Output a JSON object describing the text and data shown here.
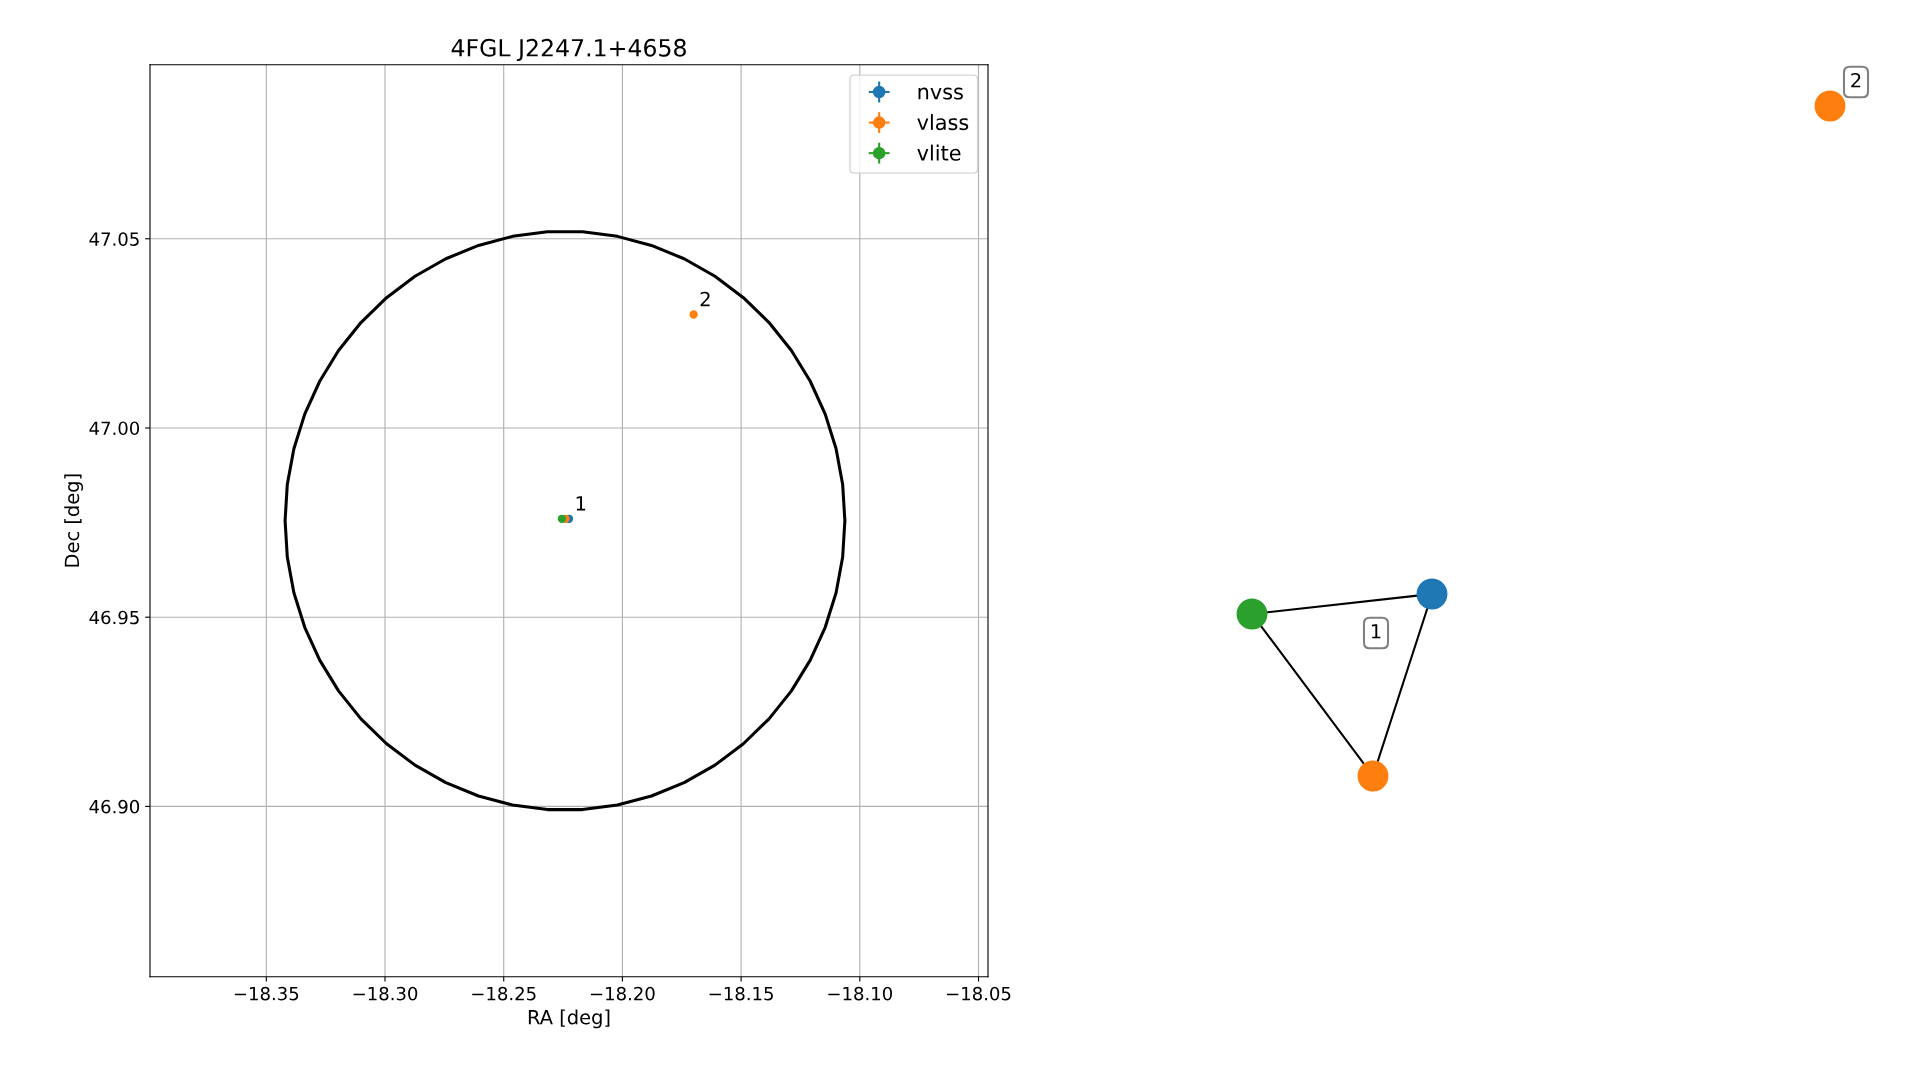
{
  "chart_data": [
    {
      "type": "scatter",
      "title": "4FGL J2247.1+4658",
      "xlabel": "RA [deg]",
      "ylabel": "Dec [deg]",
      "xlim": [
        -18.399,
        -18.046
      ],
      "ylim": [
        46.855,
        47.096
      ],
      "xticks": [
        {
          "value": -18.35,
          "label": "−18.35"
        },
        {
          "value": -18.3,
          "label": "−18.30"
        },
        {
          "value": -18.25,
          "label": "−18.25"
        },
        {
          "value": -18.2,
          "label": "−18.20"
        },
        {
          "value": -18.15,
          "label": "−18.15"
        },
        {
          "value": -18.1,
          "label": "−18.10"
        },
        {
          "value": -18.05,
          "label": "−18.05"
        }
      ],
      "yticks": [
        {
          "value": 46.9,
          "label": "46.90"
        },
        {
          "value": 46.95,
          "label": "46.95"
        },
        {
          "value": 47.0,
          "label": "47.00"
        },
        {
          "value": 47.05,
          "label": "47.05"
        }
      ],
      "grid": true,
      "legend": "top right",
      "marker": "circle",
      "series": [
        {
          "name": "nvss",
          "color": "#1f77b4",
          "x": [
            -18.2225
          ],
          "values": [
            46.976
          ]
        },
        {
          "name": "vlass",
          "color": "#ff7f0e",
          "x": [
            -18.224,
            -18.17
          ],
          "values": [
            46.976,
            47.03
          ]
        },
        {
          "name": "vlite",
          "color": "#2ca02c",
          "x": [
            -18.2255
          ],
          "values": [
            46.976
          ]
        }
      ],
      "annotations": [
        {
          "text": "1",
          "x": -18.2225,
          "y": 46.976
        },
        {
          "text": "2",
          "x": -18.17,
          "y": 47.03
        }
      ]
    },
    {
      "type": "other",
      "annotations": [
        "1",
        "2"
      ]
    }
  ]
}
